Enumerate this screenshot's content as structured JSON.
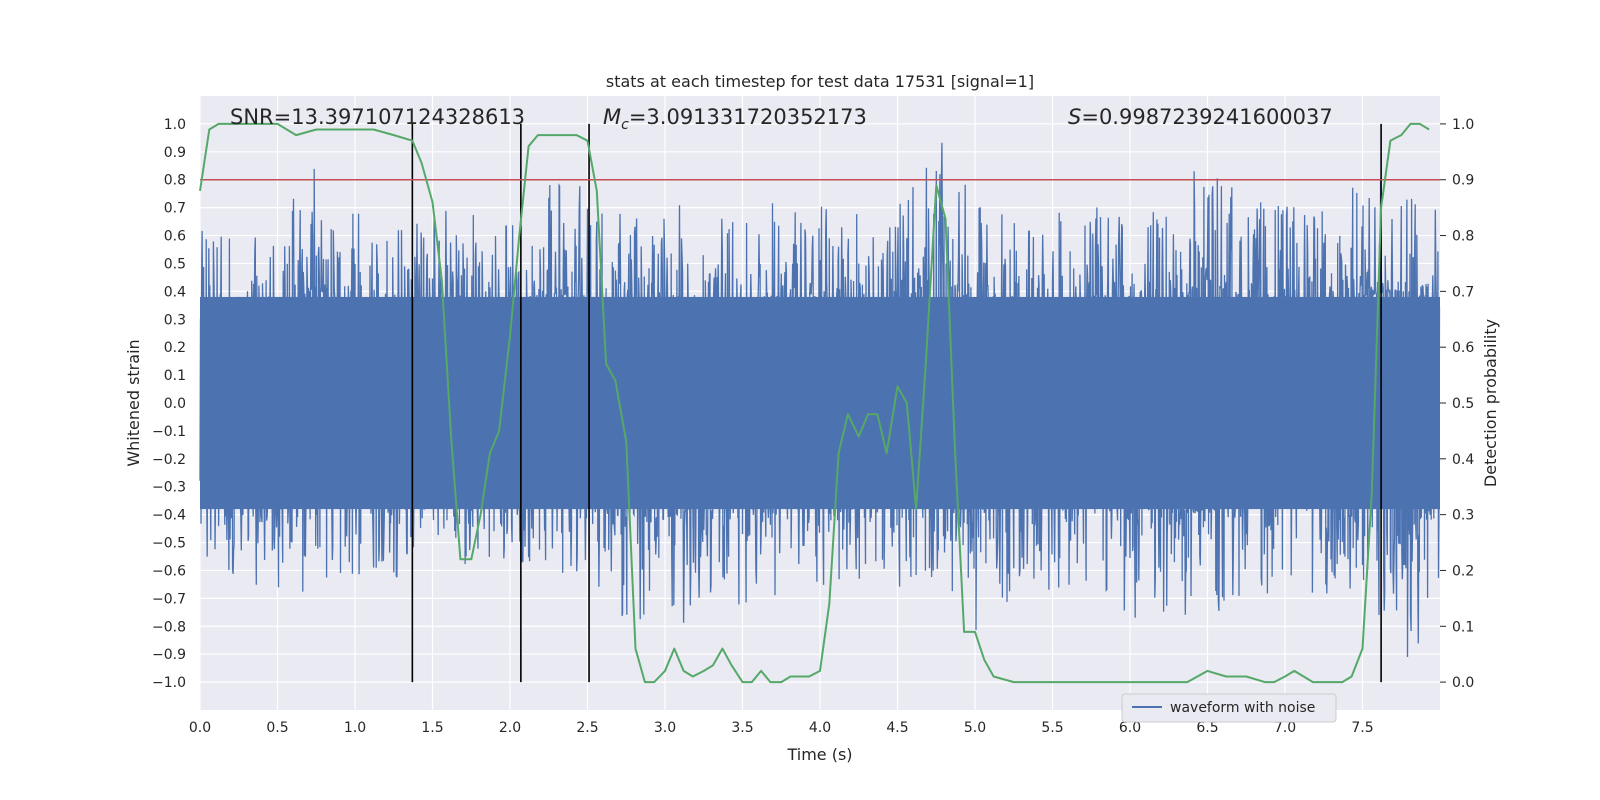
{
  "chart_data": {
    "type": "line",
    "title": "stats at each timestep for test data 17531 [signal=1]",
    "xlabel": "Time (s)",
    "ylabel": "Whitened strain",
    "y2label": "Detection probability",
    "xlim": [
      0.0,
      8.0
    ],
    "ylim": [
      -1.1,
      1.1
    ],
    "y2lim": [
      -0.05,
      1.05
    ],
    "xticks": [
      0.0,
      0.5,
      1.0,
      1.5,
      2.0,
      2.5,
      3.0,
      3.5,
      4.0,
      4.5,
      5.0,
      5.5,
      6.0,
      6.5,
      7.0,
      7.5
    ],
    "yticks": [
      -1.0,
      -0.9,
      -0.8,
      -0.7,
      -0.6,
      -0.5,
      -0.4,
      -0.3,
      -0.2,
      -0.1,
      0.0,
      0.1,
      0.2,
      0.3,
      0.4,
      0.5,
      0.6,
      0.7,
      0.8,
      0.9,
      1.0
    ],
    "y2ticks": [
      0.0,
      0.1,
      0.2,
      0.3,
      0.4,
      0.5,
      0.6,
      0.7,
      0.8,
      0.9,
      1.0
    ],
    "grid": true,
    "legend_position": "lower-right",
    "annotations": {
      "snr": "SNR=13.397107124328613",
      "mc_symbol": "M",
      "mc_sub": "c",
      "mc_value": "=3.091331720352173",
      "s_symbol": "S",
      "s_value": "=0.9987239241600037"
    },
    "colors": {
      "waveform": "#4c72b0",
      "probability": "#55a868",
      "threshold": "#c44e52",
      "markers": "#000000",
      "background": "#eaeaf2"
    },
    "series": [
      {
        "name": "waveform with noise",
        "axis": "left",
        "kind": "strain",
        "envelope_pos_x": [
          0.0,
          0.25,
          0.5,
          0.75,
          1.0,
          1.25,
          1.5,
          1.75,
          2.0,
          2.25,
          2.5,
          2.75,
          3.0,
          3.25,
          3.5,
          3.75,
          4.0,
          4.25,
          4.5,
          4.75,
          5.0,
          5.25,
          5.5,
          5.75,
          6.0,
          6.25,
          6.5,
          6.75,
          7.0,
          7.25,
          7.5,
          7.75,
          8.0
        ],
        "envelope_pos": [
          0.62,
          0.66,
          0.68,
          0.86,
          0.68,
          0.66,
          0.7,
          0.68,
          0.66,
          0.82,
          0.78,
          0.68,
          0.72,
          0.7,
          0.68,
          0.76,
          0.72,
          0.74,
          0.7,
          0.97,
          0.72,
          0.7,
          0.68,
          0.7,
          0.72,
          0.7,
          0.92,
          0.74,
          0.72,
          0.74,
          0.8,
          0.84,
          0.7
        ],
        "envelope_neg": [
          -0.58,
          -0.62,
          -0.71,
          -0.66,
          -0.62,
          -0.64,
          -0.6,
          -0.62,
          -0.6,
          -0.62,
          -0.6,
          -0.82,
          -0.86,
          -0.74,
          -0.72,
          -0.7,
          -0.72,
          -0.64,
          -0.66,
          -0.66,
          -0.82,
          -0.7,
          -0.68,
          -0.66,
          -0.78,
          -0.76,
          -0.8,
          -0.72,
          -0.66,
          -0.7,
          -0.9,
          -1.0,
          -0.72
        ]
      },
      {
        "name": "Detection probability",
        "axis": "right",
        "x": [
          0.0,
          0.06,
          0.12,
          0.25,
          0.5,
          0.62,
          0.75,
          0.87,
          1.0,
          1.12,
          1.25,
          1.37,
          1.43,
          1.5,
          1.56,
          1.62,
          1.68,
          1.75,
          1.81,
          1.87,
          1.93,
          2.0,
          2.06,
          2.12,
          2.18,
          2.25,
          2.37,
          2.43,
          2.5,
          2.56,
          2.62,
          2.68,
          2.75,
          2.81,
          2.87,
          2.93,
          3.0,
          3.06,
          3.12,
          3.18,
          3.25,
          3.31,
          3.37,
          3.43,
          3.5,
          3.56,
          3.62,
          3.68,
          3.75,
          3.81,
          3.87,
          3.93,
          4.0,
          4.06,
          4.12,
          4.18,
          4.25,
          4.31,
          4.37,
          4.43,
          4.5,
          4.56,
          4.62,
          4.68,
          4.75,
          4.81,
          4.87,
          4.93,
          5.0,
          5.06,
          5.12,
          5.25,
          5.5,
          5.75,
          6.0,
          6.25,
          6.37,
          6.5,
          6.62,
          6.75,
          6.87,
          6.93,
          7.0,
          7.06,
          7.12,
          7.18,
          7.25,
          7.31,
          7.37,
          7.43,
          7.5,
          7.56,
          7.62,
          7.68,
          7.75,
          7.81,
          7.87,
          7.93
        ],
        "values": [
          0.88,
          0.99,
          1.0,
          1.0,
          1.0,
          0.98,
          0.99,
          0.99,
          0.99,
          0.99,
          0.98,
          0.97,
          0.93,
          0.86,
          0.72,
          0.44,
          0.22,
          0.22,
          0.3,
          0.41,
          0.45,
          0.62,
          0.8,
          0.96,
          0.98,
          0.98,
          0.98,
          0.98,
          0.97,
          0.88,
          0.57,
          0.54,
          0.43,
          0.06,
          0.0,
          0.0,
          0.02,
          0.06,
          0.02,
          0.01,
          0.02,
          0.03,
          0.06,
          0.03,
          0.0,
          0.0,
          0.02,
          0.0,
          0.0,
          0.01,
          0.01,
          0.01,
          0.02,
          0.14,
          0.41,
          0.48,
          0.44,
          0.48,
          0.48,
          0.41,
          0.53,
          0.5,
          0.31,
          0.56,
          0.89,
          0.83,
          0.42,
          0.09,
          0.09,
          0.04,
          0.01,
          0.0,
          0.0,
          0.0,
          0.0,
          0.0,
          0.0,
          0.02,
          0.01,
          0.01,
          0.0,
          0.0,
          0.01,
          0.02,
          0.01,
          0.0,
          0.0,
          0.0,
          0.0,
          0.01,
          0.06,
          0.34,
          0.85,
          0.97,
          0.98,
          1.0,
          1.0,
          0.99
        ]
      }
    ],
    "threshold_y2": 0.9,
    "vlines_x": [
      1.37,
      2.07,
      2.51,
      7.62
    ]
  }
}
